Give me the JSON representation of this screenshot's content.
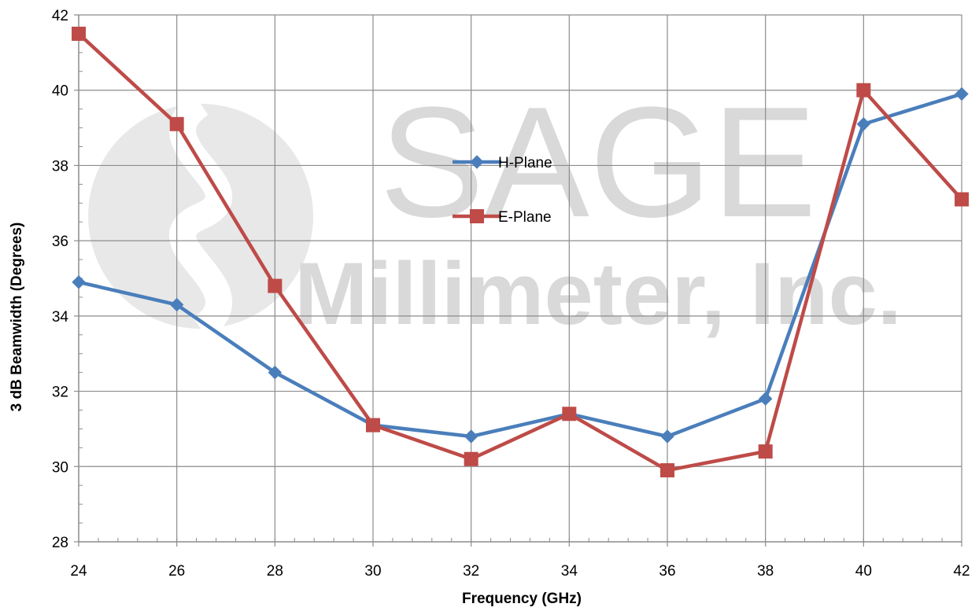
{
  "chart_data": {
    "type": "line",
    "title": "",
    "xlabel": "Frequency (GHz)",
    "ylabel": "3 dB Beamwidth (Degrees)",
    "xlim": [
      24,
      42
    ],
    "ylim": [
      28,
      42
    ],
    "xticks": [
      24,
      26,
      28,
      30,
      32,
      34,
      36,
      38,
      40,
      42
    ],
    "yticks": [
      28,
      30,
      32,
      34,
      36,
      38,
      40,
      42
    ],
    "grid": true,
    "legend_position": "center",
    "x": [
      24,
      26,
      28,
      30,
      32,
      34,
      36,
      38,
      40,
      42
    ],
    "series": [
      {
        "name": "H-Plane",
        "color": "#4a7ebb",
        "marker": "diamond",
        "values": [
          34.9,
          34.3,
          32.5,
          31.1,
          30.8,
          31.4,
          30.8,
          31.8,
          39.1,
          39.9
        ]
      },
      {
        "name": "E-Plane",
        "color": "#be4b48",
        "marker": "square",
        "values": [
          41.5,
          39.1,
          34.8,
          31.1,
          30.2,
          31.4,
          29.9,
          30.4,
          40.0,
          37.1
        ]
      }
    ]
  },
  "watermark": {
    "line1": "SAGE",
    "line2": "Millimeter, Inc."
  }
}
